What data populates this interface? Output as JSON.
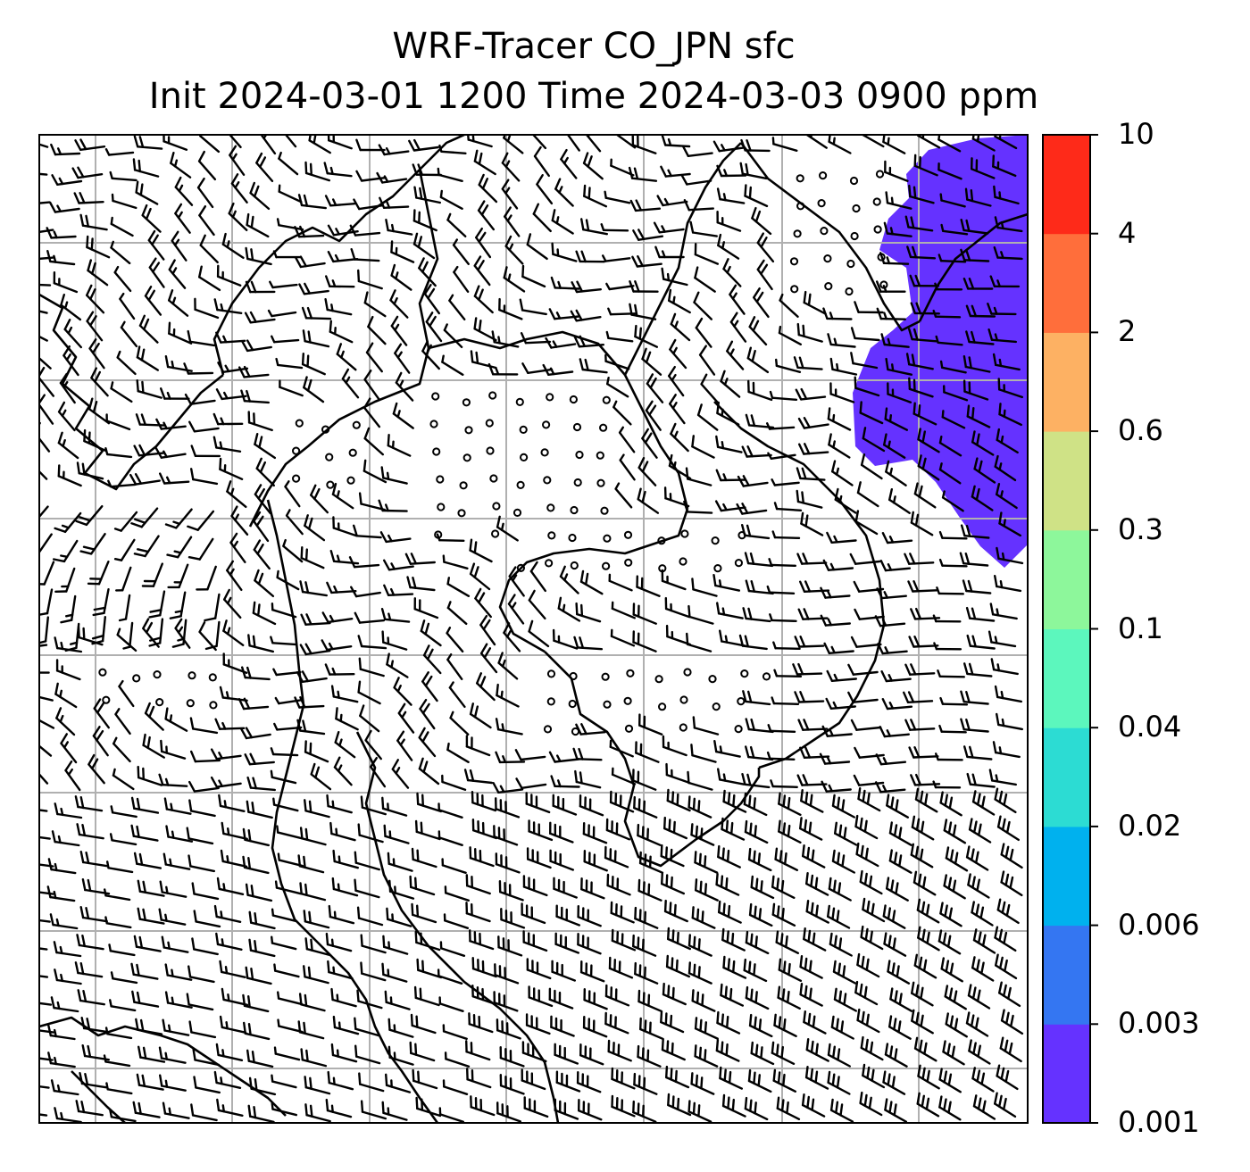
{
  "title": {
    "line1": "WRF-Tracer CO_JPN sfc",
    "line2": "Init 2024-03-01 1200 Time 2024-03-03 0900 ppm"
  },
  "colorbar": {
    "levels": [
      "0.001",
      "0.003",
      "0.006",
      "0.02",
      "0.04",
      "0.1",
      "0.3",
      "0.6",
      "2",
      "4",
      "10"
    ],
    "colors": [
      "#6532ff",
      "#3476f2",
      "#00b1ee",
      "#2cdcd3",
      "#5cf7bd",
      "#8df79b",
      "#cfe286",
      "#fdb163",
      "#ff6e3b",
      "#fe2a19"
    ]
  },
  "map": {
    "field": "CO_JPN tracer concentration (filled) with surface wind barbs",
    "plume_color": "#6532ff",
    "gridline_color": "#b0b0b0",
    "coastline_color": "#000000"
  }
}
